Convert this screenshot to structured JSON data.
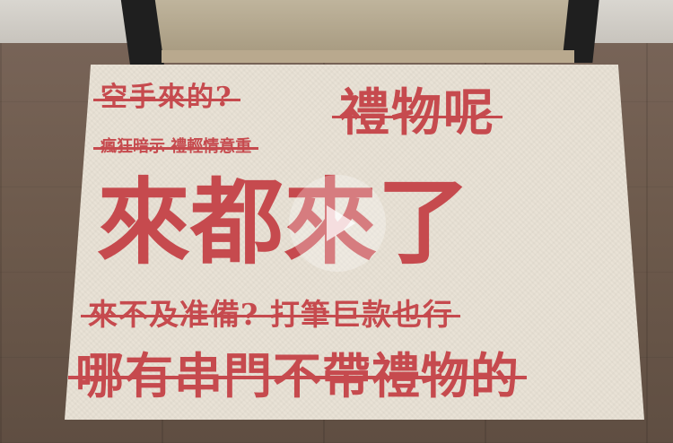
{
  "scene": {
    "mat_lines": [
      "空手來的?",
      "禮物呢",
      "瘋狂暗示 禮輕情意重",
      "來都來了",
      "來不及准備? 打筆巨款也行",
      "哪有串門不帶禮物的"
    ],
    "text_color": "#c64a4e",
    "mat_color": "#e9e2d6"
  }
}
